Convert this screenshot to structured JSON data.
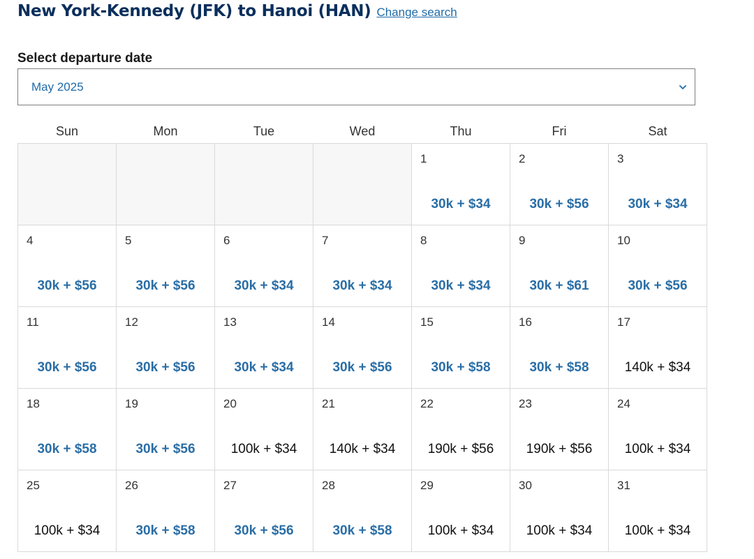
{
  "header": {
    "title": "New York-Kennedy (JFK) to Hanoi (HAN)",
    "change_search": "Change search"
  },
  "date_select": {
    "label": "Select departure date",
    "value": "May 2025"
  },
  "calendar": {
    "weekdays": [
      "Sun",
      "Mon",
      "Tue",
      "Wed",
      "Thu",
      "Fri",
      "Sat"
    ],
    "leading_blank_days": 4,
    "colors": {
      "saver_price": "#2a6ea6",
      "standard_price": "#111111"
    },
    "days": [
      {
        "day": "1",
        "price": "30k + $34",
        "saver": true
      },
      {
        "day": "2",
        "price": "30k + $56",
        "saver": true
      },
      {
        "day": "3",
        "price": "30k + $34",
        "saver": true
      },
      {
        "day": "4",
        "price": "30k + $56",
        "saver": true
      },
      {
        "day": "5",
        "price": "30k + $56",
        "saver": true
      },
      {
        "day": "6",
        "price": "30k + $34",
        "saver": true
      },
      {
        "day": "7",
        "price": "30k + $34",
        "saver": true
      },
      {
        "day": "8",
        "price": "30k + $34",
        "saver": true
      },
      {
        "day": "9",
        "price": "30k + $61",
        "saver": true
      },
      {
        "day": "10",
        "price": "30k + $56",
        "saver": true
      },
      {
        "day": "11",
        "price": "30k + $56",
        "saver": true
      },
      {
        "day": "12",
        "price": "30k + $56",
        "saver": true
      },
      {
        "day": "13",
        "price": "30k + $34",
        "saver": true
      },
      {
        "day": "14",
        "price": "30k + $56",
        "saver": true
      },
      {
        "day": "15",
        "price": "30k + $58",
        "saver": true
      },
      {
        "day": "16",
        "price": "30k + $58",
        "saver": true
      },
      {
        "day": "17",
        "price": "140k + $34",
        "saver": false
      },
      {
        "day": "18",
        "price": "30k + $58",
        "saver": true
      },
      {
        "day": "19",
        "price": "30k + $56",
        "saver": true
      },
      {
        "day": "20",
        "price": "100k + $34",
        "saver": false
      },
      {
        "day": "21",
        "price": "140k + $34",
        "saver": false
      },
      {
        "day": "22",
        "price": "190k + $56",
        "saver": false
      },
      {
        "day": "23",
        "price": "190k + $56",
        "saver": false
      },
      {
        "day": "24",
        "price": "100k + $34",
        "saver": false
      },
      {
        "day": "25",
        "price": "100k + $34",
        "saver": false
      },
      {
        "day": "26",
        "price": "30k + $58",
        "saver": true
      },
      {
        "day": "27",
        "price": "30k + $56",
        "saver": true
      },
      {
        "day": "28",
        "price": "30k + $58",
        "saver": true
      },
      {
        "day": "29",
        "price": "100k + $34",
        "saver": false
      },
      {
        "day": "30",
        "price": "100k + $34",
        "saver": false
      },
      {
        "day": "31",
        "price": "100k + $34",
        "saver": false
      }
    ]
  }
}
